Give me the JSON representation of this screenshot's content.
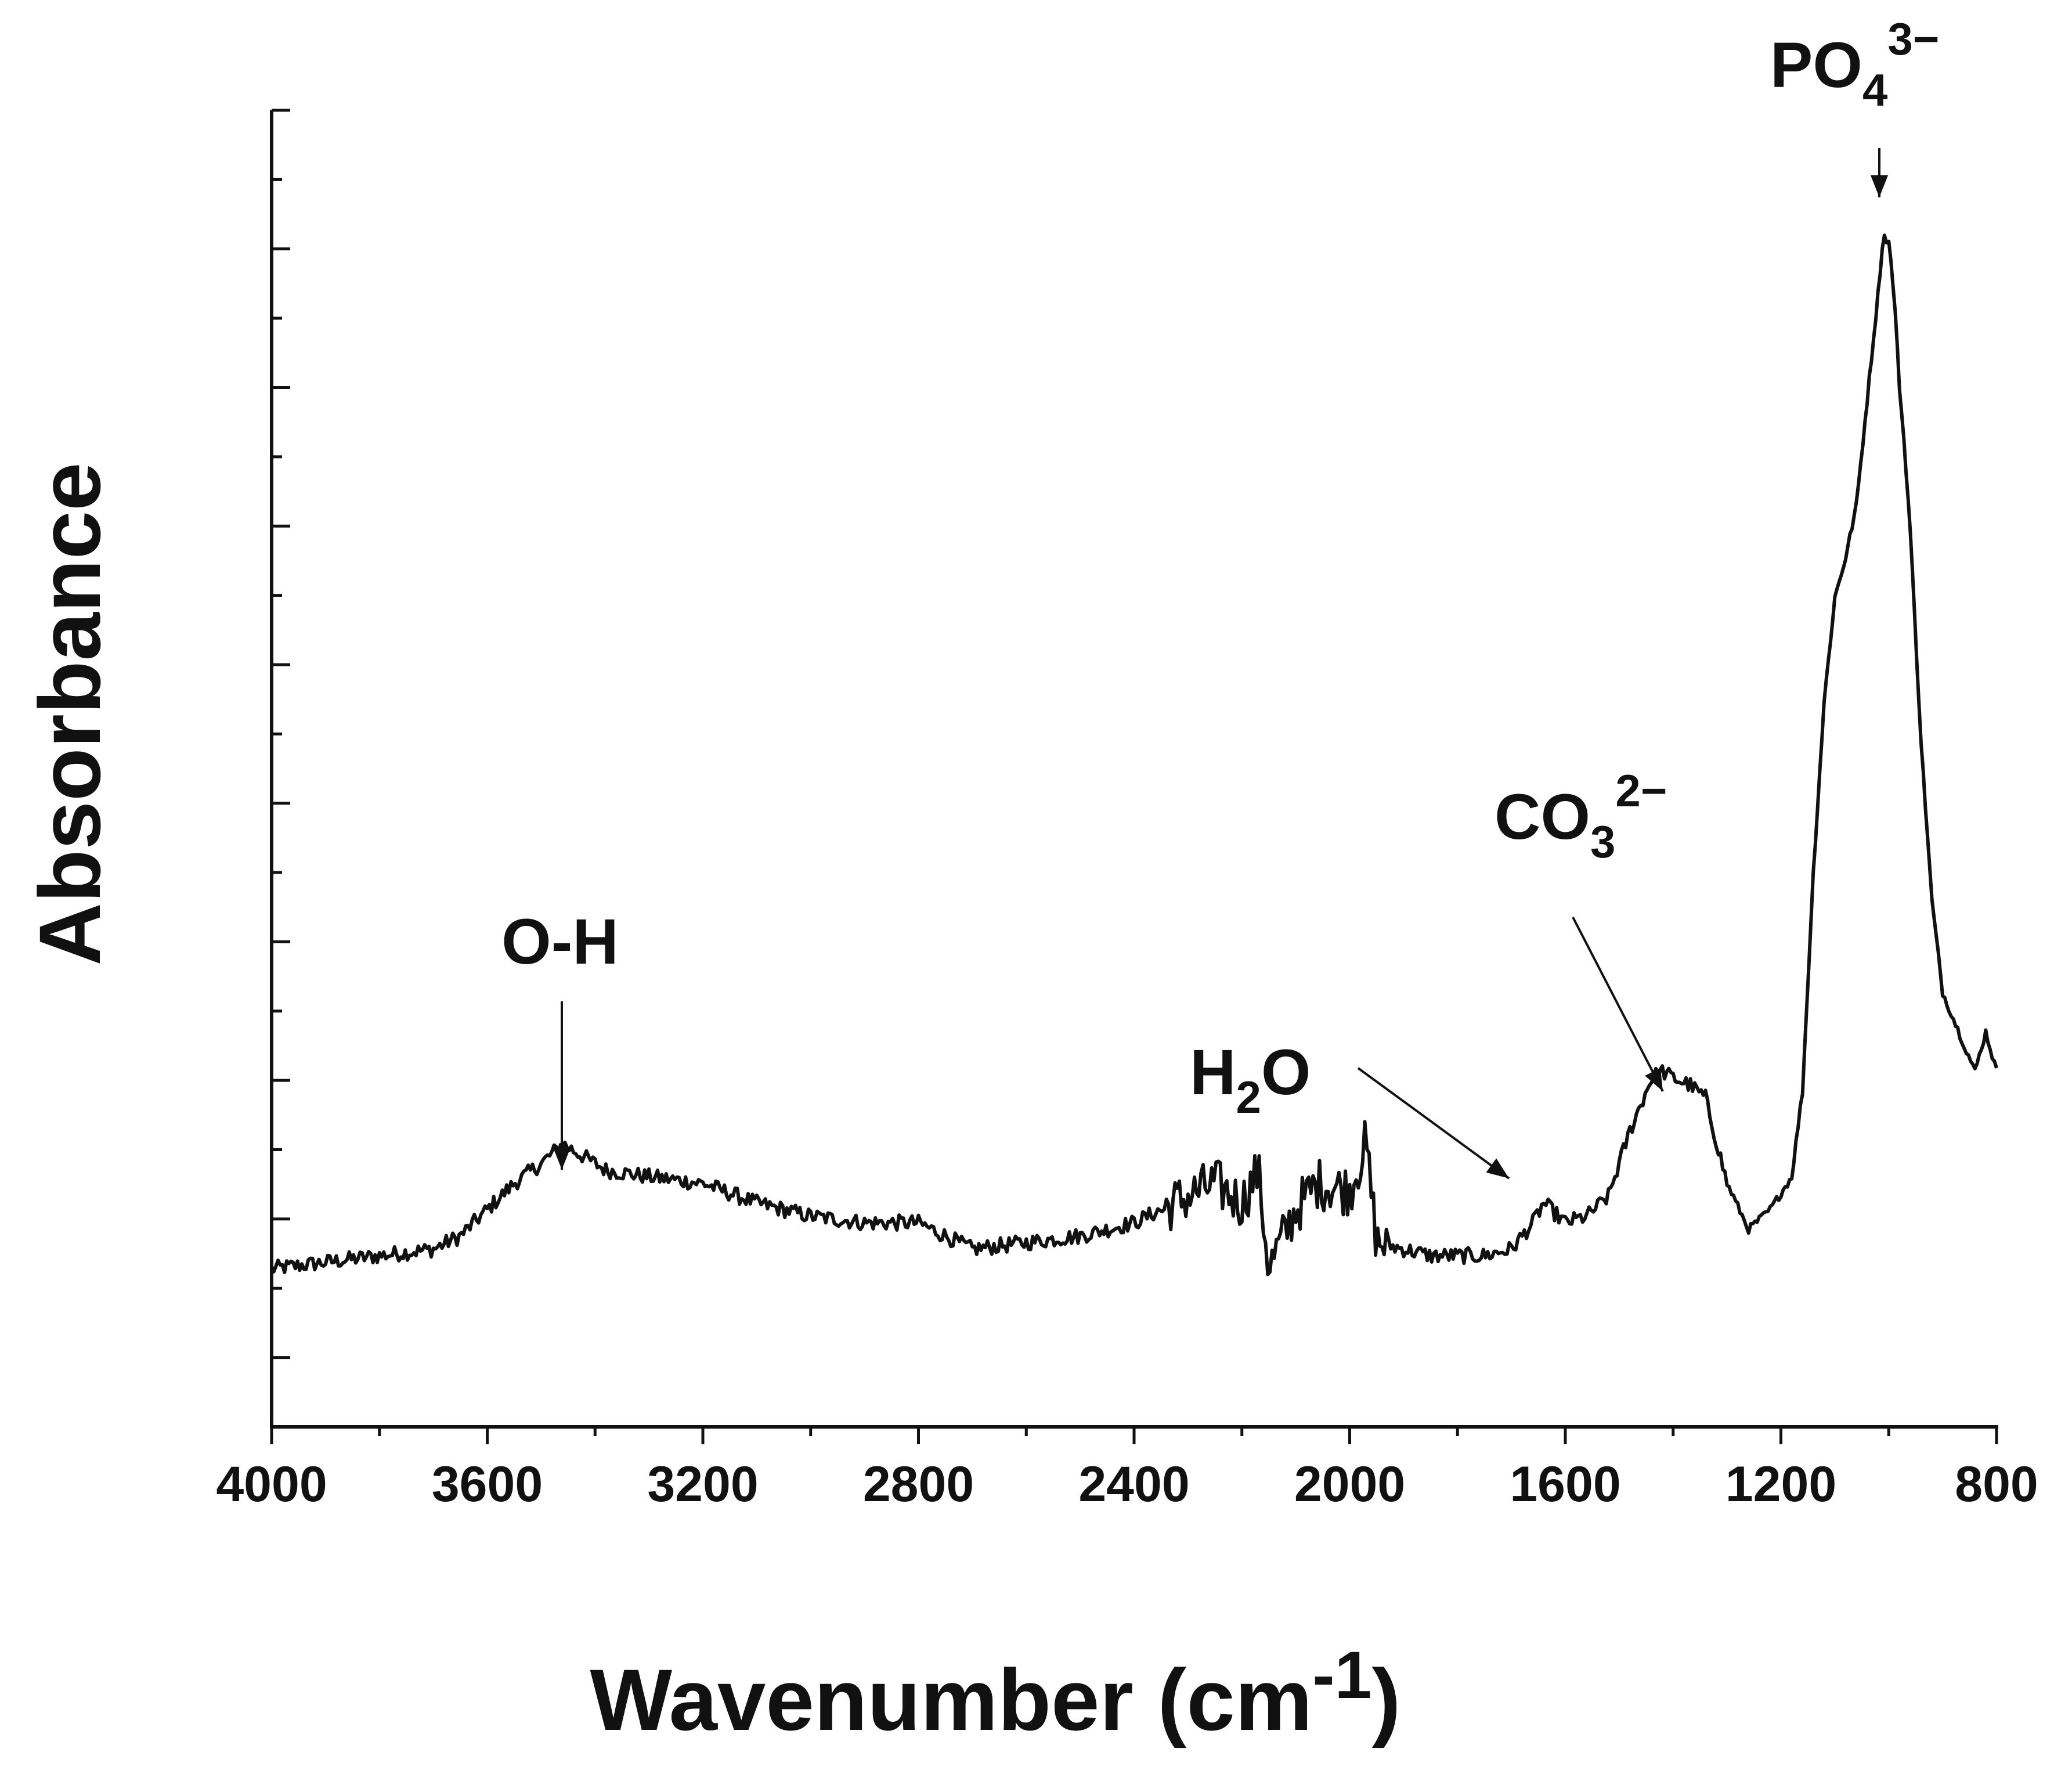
{
  "chart_data": {
    "type": "line",
    "title": "",
    "xlabel": "Wavenumber (cm",
    "xlabel_superscript": "-1",
    "xlabel_close": ")",
    "ylabel": "Absorbance",
    "xlim": [
      4000,
      800
    ],
    "x_reversed": true,
    "ylim": [
      0,
      1
    ],
    "y_tick_labels_shown": false,
    "grid": false,
    "line_color": "#111111",
    "x_ticks": [
      "4000",
      "3600",
      "3200",
      "2800",
      "2400",
      "2000",
      "1600",
      "1200",
      "800"
    ],
    "series": [
      {
        "x": [
          4000,
          3900,
          3800,
          3700,
          3650,
          3600,
          3550,
          3500,
          3460,
          3420,
          3380,
          3300,
          3200,
          3100,
          3000,
          2900,
          2800,
          2700,
          2600,
          2500,
          2400,
          2350,
          2300,
          2250,
          2200,
          2170,
          2150,
          2100,
          2060,
          2000,
          1970,
          1950,
          1900,
          1850,
          1800,
          1750,
          1700,
          1660,
          1640,
          1600,
          1560,
          1520,
          1480,
          1440,
          1420,
          1400,
          1370,
          1340,
          1300,
          1260,
          1220,
          1180,
          1160,
          1140,
          1120,
          1100,
          1080,
          1060,
          1040,
          1020,
          1010,
          1000,
          990,
          980,
          970,
          960,
          950,
          940,
          930,
          920,
          900,
          880,
          860,
          840,
          820,
          800
        ],
        "y": [
          0.12,
          0.125,
          0.13,
          0.135,
          0.145,
          0.165,
          0.185,
          0.2,
          0.215,
          0.205,
          0.195,
          0.19,
          0.185,
          0.17,
          0.16,
          0.155,
          0.155,
          0.135,
          0.14,
          0.145,
          0.155,
          0.165,
          0.175,
          0.185,
          0.17,
          0.195,
          0.12,
          0.165,
          0.185,
          0.18,
          0.215,
          0.14,
          0.135,
          0.13,
          0.13,
          0.13,
          0.135,
          0.155,
          0.17,
          0.155,
          0.16,
          0.175,
          0.225,
          0.265,
          0.27,
          0.265,
          0.26,
          0.25,
          0.185,
          0.15,
          0.165,
          0.19,
          0.255,
          0.42,
          0.55,
          0.63,
          0.66,
          0.7,
          0.78,
          0.86,
          0.905,
          0.9,
          0.86,
          0.79,
          0.74,
          0.68,
          0.6,
          0.52,
          0.46,
          0.4,
          0.33,
          0.31,
          0.29,
          0.27,
          0.3,
          0.27
        ]
      }
    ],
    "annotations": [
      {
        "text": "O-H",
        "x": 3460
      },
      {
        "text": "H",
        "sub": "2",
        "text_after": "O",
        "x": 1720
      },
      {
        "text": "CO",
        "sub": "3",
        "sup": "2−",
        "x": 1420
      },
      {
        "text": "PO",
        "sub": "4",
        "sup": "3−",
        "x": 1010
      }
    ]
  }
}
